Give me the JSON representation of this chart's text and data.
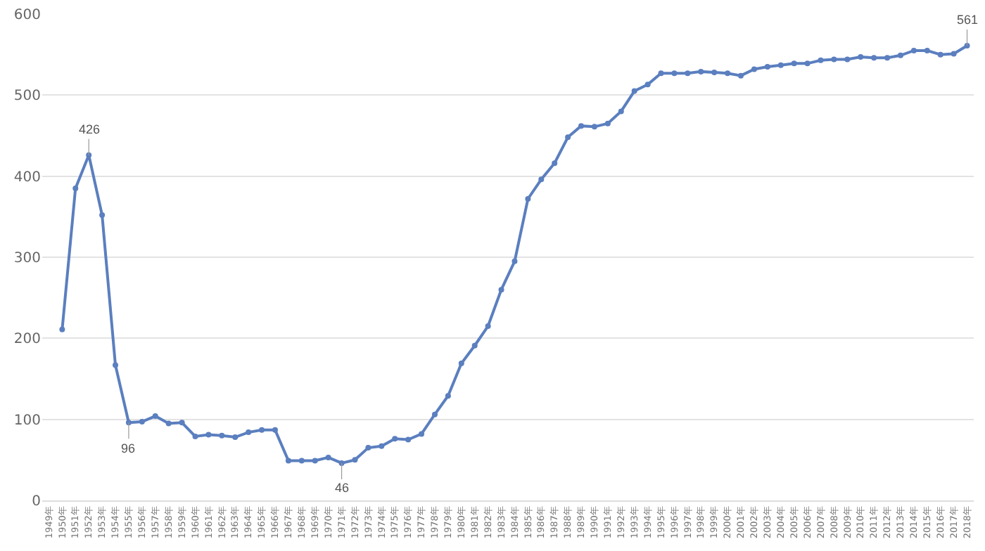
{
  "chart_data": {
    "type": "line",
    "categories": [
      "1949年",
      "1950年",
      "1951年",
      "1952年",
      "1953年",
      "1954年",
      "1955年",
      "1956年",
      "1957年",
      "1958年",
      "1959年",
      "1960年",
      "1961年",
      "1962年",
      "1963年",
      "1964年",
      "1965年",
      "1966年",
      "1967年",
      "1968年",
      "1969年",
      "1970年",
      "1971年",
      "1972年",
      "1973年",
      "1974年",
      "1975年",
      "1976年",
      "1977年",
      "1978年",
      "1979年",
      "1980年",
      "1981年",
      "1982年",
      "1983年",
      "1984年",
      "1985年",
      "1986年",
      "1987年",
      "1988年",
      "1989年",
      "1990年",
      "1991年",
      "1992年",
      "1993年",
      "1994年",
      "1995年",
      "1996年",
      "1997年",
      "1998年",
      "1999年",
      "2000年",
      "2001年",
      "2002年",
      "2003年",
      "2004年",
      "2005年",
      "2006年",
      "2007年",
      "2008年",
      "2009年",
      "2010年",
      "2011年",
      "2012年",
      "2013年",
      "2014年",
      "2015年",
      "2016年",
      "2017年",
      "2018年"
    ],
    "series": [
      {
        "color": "#5b7fbf",
        "values": [
          null,
          211,
          385,
          426,
          352,
          167,
          96,
          97,
          104,
          95,
          96,
          79,
          81,
          80,
          78,
          84,
          87,
          87,
          49,
          49,
          49,
          53,
          46,
          50,
          65,
          67,
          76,
          75,
          82,
          106,
          129,
          169,
          191,
          215,
          260,
          295,
          372,
          396,
          416,
          448,
          462,
          461,
          465,
          480,
          505,
          513,
          527,
          527,
          527,
          529,
          528,
          527,
          524,
          532,
          535,
          537,
          539,
          539,
          543,
          544,
          544,
          547,
          546,
          546,
          549,
          555,
          555,
          550,
          551,
          561
        ],
        "value_labels": [
          null,
          null,
          null,
          "426",
          null,
          null,
          "96",
          null,
          null,
          null,
          null,
          null,
          null,
          null,
          null,
          null,
          null,
          null,
          null,
          null,
          null,
          null,
          "46",
          null,
          null,
          null,
          null,
          null,
          null,
          null,
          null,
          null,
          null,
          null,
          null,
          null,
          null,
          null,
          null,
          null,
          null,
          null,
          null,
          null,
          null,
          null,
          null,
          null,
          null,
          null,
          null,
          null,
          null,
          null,
          null,
          null,
          null,
          null,
          null,
          null,
          null,
          null,
          null,
          null,
          null,
          null,
          null,
          null,
          null,
          "561"
        ]
      }
    ],
    "ylim": [
      0,
      600
    ],
    "yticks": [
      0,
      100,
      200,
      300,
      400,
      500,
      600
    ],
    "grid": "y",
    "marker": "circle",
    "line_style": "solid"
  }
}
